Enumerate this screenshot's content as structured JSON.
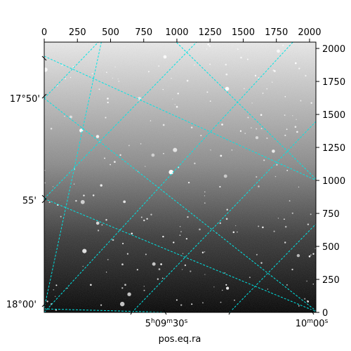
{
  "figure": {
    "colormap": "gray",
    "grid_color": "#00e5e5",
    "background": "#ffffff"
  },
  "pixel_axes": {
    "x_ticks": [
      "0",
      "250",
      "500",
      "750",
      "1000",
      "1250",
      "1500",
      "1750",
      "2000"
    ],
    "y_ticks": [
      "0",
      "250",
      "500",
      "750",
      "1000",
      "1250",
      "1500",
      "1750",
      "2000"
    ],
    "x_range": [
      0,
      2048
    ],
    "y_range": [
      0,
      2048
    ]
  },
  "world_axes": {
    "dec_labels": {
      "d1": "17°50'",
      "d2": "55'",
      "d3": "18°00'"
    },
    "ra_labels": {
      "r1h": "5",
      "r1hs": "h",
      "r1m": "09",
      "r1ms": "m",
      "r1s": "30",
      "r1ss": "s",
      "r2m": "10",
      "r2ms": "m",
      "r2s": "00",
      "r2ss": "s"
    },
    "xlabel": "pos.eq.ra"
  }
}
